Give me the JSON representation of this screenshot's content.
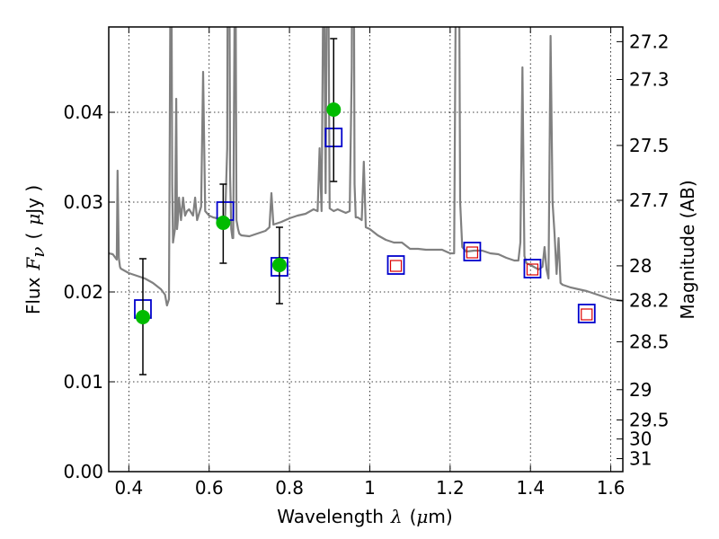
{
  "chart_data": {
    "type": "scatter",
    "title": "",
    "xlabel": "Wavelength",
    "xlabel_symbol": "λ",
    "xlabel_unit_open": "(",
    "xlabel_unit_mu": "μ",
    "xlabel_unit_rest": "m)",
    "ylabel": "Flux",
    "ylabel_symbol": "F",
    "ylabel_sub": "ν",
    "ylabel_unit_open": "(",
    "ylabel_unit_mu": "μ",
    "ylabel_unit_rest": "Jy )",
    "y2label": "Magnitude (AB)",
    "xlim": [
      0.35,
      1.63
    ],
    "ylim": [
      0.0,
      0.0495
    ],
    "grid": true,
    "x_ticks": [
      {
        "value": 0.4,
        "label": "0.4"
      },
      {
        "value": 0.6,
        "label": "0.6"
      },
      {
        "value": 0.8,
        "label": "0.8"
      },
      {
        "value": 1.0,
        "label": "1"
      },
      {
        "value": 1.2,
        "label": "1.2"
      },
      {
        "value": 1.4,
        "label": "1.4"
      },
      {
        "value": 1.6,
        "label": "1.6"
      }
    ],
    "y_ticks": [
      {
        "value": 0.0,
        "label": "0.00"
      },
      {
        "value": 0.01,
        "label": "0.01"
      },
      {
        "value": 0.02,
        "label": "0.02"
      },
      {
        "value": 0.03,
        "label": "0.03"
      },
      {
        "value": 0.04,
        "label": "0.04"
      }
    ],
    "y2_ticks": [
      {
        "mag": 27.2,
        "label": "27.2"
      },
      {
        "mag": 27.3,
        "label": "27.3"
      },
      {
        "mag": 27.5,
        "label": "27.5"
      },
      {
        "mag": 27.7,
        "label": "27.7"
      },
      {
        "mag": 28.0,
        "label": "28"
      },
      {
        "mag": 28.2,
        "label": "28.2"
      },
      {
        "mag": 28.5,
        "label": "28.5"
      },
      {
        "mag": 29.0,
        "label": "29"
      },
      {
        "mag": 29.5,
        "label": "29.5"
      },
      {
        "mag": 30.0,
        "label": "30"
      },
      {
        "mag": 31.0,
        "label": "31"
      }
    ],
    "series": [
      {
        "kind": "spectrum",
        "color": "#808080",
        "x": [
          0.35,
          0.36,
          0.37,
          0.372,
          0.375,
          0.378,
          0.38,
          0.4,
          0.42,
          0.44,
          0.46,
          0.48,
          0.49,
          0.495,
          0.5,
          0.502,
          0.505,
          0.508,
          0.51,
          0.515,
          0.518,
          0.52,
          0.522,
          0.525,
          0.53,
          0.535,
          0.54,
          0.545,
          0.55,
          0.56,
          0.565,
          0.57,
          0.58,
          0.585,
          0.59,
          0.6,
          0.61,
          0.62,
          0.63,
          0.64,
          0.645,
          0.648,
          0.652,
          0.655,
          0.658,
          0.66,
          0.665,
          0.668,
          0.672,
          0.675,
          0.68,
          0.7,
          0.72,
          0.74,
          0.75,
          0.755,
          0.76,
          0.78,
          0.8,
          0.82,
          0.84,
          0.86,
          0.87,
          0.875,
          0.88,
          0.885,
          0.89,
          0.895,
          0.9,
          0.91,
          0.92,
          0.93,
          0.94,
          0.95,
          0.955,
          0.958,
          0.962,
          0.965,
          0.97,
          0.98,
          0.985,
          0.99,
          1.0,
          1.02,
          1.04,
          1.06,
          1.08,
          1.1,
          1.12,
          1.14,
          1.16,
          1.18,
          1.2,
          1.21,
          1.215,
          1.22,
          1.225,
          1.23,
          1.24,
          1.26,
          1.28,
          1.3,
          1.32,
          1.34,
          1.36,
          1.37,
          1.375,
          1.38,
          1.385,
          1.39,
          1.4,
          1.42,
          1.43,
          1.435,
          1.44,
          1.445,
          1.45,
          1.455,
          1.46,
          1.465,
          1.47,
          1.475,
          1.48,
          1.5,
          1.52,
          1.54,
          1.56,
          1.58,
          1.6,
          1.63
        ],
        "y": [
          0.0243,
          0.0242,
          0.0236,
          0.0335,
          0.0238,
          0.0228,
          0.0226,
          0.0221,
          0.0218,
          0.0215,
          0.021,
          0.0203,
          0.0197,
          0.0185,
          0.0192,
          0.038,
          0.07,
          0.032,
          0.0255,
          0.027,
          0.0415,
          0.027,
          0.028,
          0.0305,
          0.028,
          0.0305,
          0.0285,
          0.029,
          0.0292,
          0.0285,
          0.0305,
          0.028,
          0.0295,
          0.0445,
          0.029,
          0.0285,
          0.0283,
          0.0282,
          0.0281,
          0.0285,
          0.036,
          0.09,
          0.033,
          0.027,
          0.026,
          0.026,
          0.065,
          0.028,
          0.027,
          0.0265,
          0.0263,
          0.0262,
          0.0265,
          0.0268,
          0.0272,
          0.031,
          0.0275,
          0.0278,
          0.0282,
          0.0285,
          0.0287,
          0.0292,
          0.029,
          0.036,
          0.029,
          0.06,
          0.031,
          0.07,
          0.0293,
          0.029,
          0.0292,
          0.029,
          0.0288,
          0.029,
          0.045,
          0.09,
          0.032,
          0.0283,
          0.0283,
          0.028,
          0.0345,
          0.0272,
          0.027,
          0.0263,
          0.0258,
          0.0255,
          0.0255,
          0.0248,
          0.0248,
          0.0247,
          0.0247,
          0.0247,
          0.0243,
          0.0243,
          0.06,
          0.08,
          0.03,
          0.025,
          0.0245,
          0.0246,
          0.0246,
          0.0243,
          0.0242,
          0.0238,
          0.0235,
          0.0235,
          0.0255,
          0.045,
          0.024,
          0.0232,
          0.023,
          0.0225,
          0.0228,
          0.025,
          0.0225,
          0.0215,
          0.0485,
          0.03,
          0.0265,
          0.022,
          0.026,
          0.021,
          0.0208,
          0.0205,
          0.0203,
          0.0201,
          0.0198,
          0.0195,
          0.0192,
          0.019
        ]
      },
      {
        "kind": "model-photometry",
        "marker": "square",
        "color": "#0000cc",
        "x": [
          0.435,
          0.64,
          0.775,
          0.91,
          1.065,
          1.255,
          1.405,
          1.54
        ],
        "y": [
          0.0181,
          0.029,
          0.0228,
          0.0372,
          0.023,
          0.0245,
          0.0226,
          0.0176
        ]
      },
      {
        "kind": "inset-photometry",
        "marker": "square",
        "color": "#dd0000",
        "x": [
          1.065,
          1.255,
          1.405,
          1.54
        ],
        "y": [
          0.0229,
          0.0244,
          0.0225,
          0.0175
        ]
      },
      {
        "kind": "observed",
        "marker": "circle",
        "color": "#00bb00",
        "x": [
          0.435,
          0.635,
          0.775,
          0.91
        ],
        "y": [
          0.0172,
          0.0277,
          0.023,
          0.0403
        ],
        "yerr_low": [
          0.0108,
          0.0232,
          0.0187,
          0.0323
        ],
        "yerr_high": [
          0.0237,
          0.032,
          0.0272,
          0.0482
        ]
      }
    ]
  }
}
